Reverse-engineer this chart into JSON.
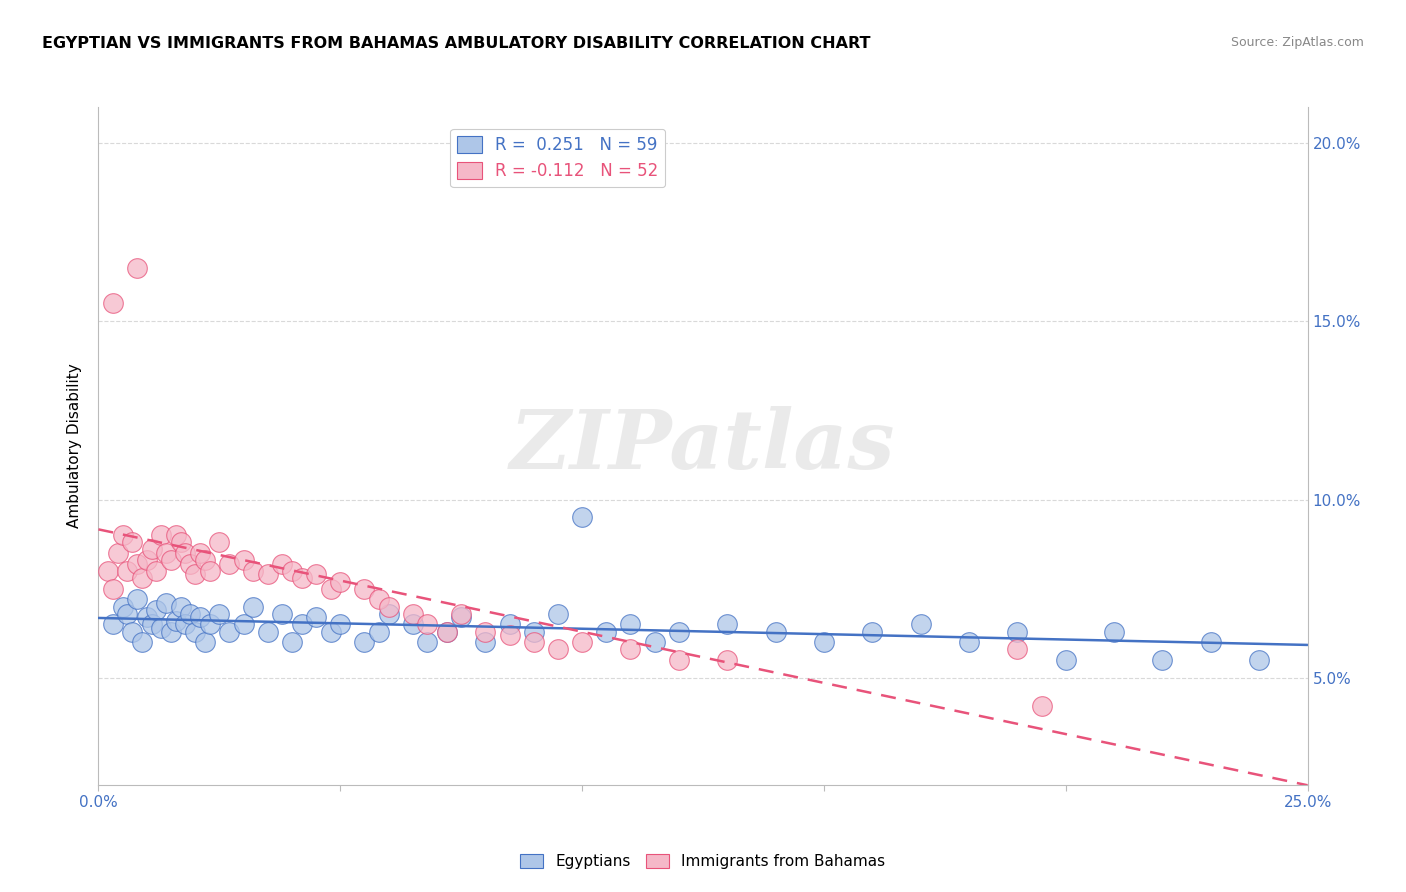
{
  "title": "EGYPTIAN VS IMMIGRANTS FROM BAHAMAS AMBULATORY DISABILITY CORRELATION CHART",
  "source": "Source: ZipAtlas.com",
  "ylabel": "Ambulatory Disability",
  "xlim": [
    0.0,
    0.25
  ],
  "ylim": [
    0.02,
    0.21
  ],
  "yticks": [
    0.05,
    0.1,
    0.15,
    0.2
  ],
  "yticklabels": [
    "5.0%",
    "10.0%",
    "15.0%",
    "20.0%"
  ],
  "xticks": [
    0.0,
    0.05,
    0.1,
    0.15,
    0.2,
    0.25
  ],
  "xticklabels": [
    "0.0%",
    "",
    "",
    "",
    "",
    "25.0%"
  ],
  "r_egyptian": 0.251,
  "n_egyptian": 59,
  "r_bahamas": -0.112,
  "n_bahamas": 52,
  "egyptian_color": "#aec6e8",
  "bahamas_color": "#f5b8c8",
  "line_egyptian_color": "#4472c4",
  "line_bahamas_color": "#e8537a",
  "watermark": "ZIPatlas",
  "background_color": "#ffffff",
  "grid_color": "#d0d0d0",
  "egyptian_x": [
    0.003,
    0.005,
    0.006,
    0.007,
    0.008,
    0.009,
    0.01,
    0.011,
    0.012,
    0.013,
    0.014,
    0.015,
    0.016,
    0.017,
    0.018,
    0.019,
    0.02,
    0.021,
    0.022,
    0.023,
    0.025,
    0.027,
    0.03,
    0.032,
    0.035,
    0.038,
    0.04,
    0.042,
    0.045,
    0.048,
    0.05,
    0.055,
    0.058,
    0.06,
    0.065,
    0.068,
    0.072,
    0.075,
    0.08,
    0.085,
    0.09,
    0.095,
    0.1,
    0.105,
    0.11,
    0.115,
    0.12,
    0.13,
    0.14,
    0.15,
    0.16,
    0.17,
    0.18,
    0.19,
    0.2,
    0.21,
    0.22,
    0.23,
    0.24
  ],
  "egyptian_y": [
    0.065,
    0.07,
    0.068,
    0.063,
    0.072,
    0.06,
    0.067,
    0.065,
    0.069,
    0.064,
    0.071,
    0.063,
    0.066,
    0.07,
    0.065,
    0.068,
    0.063,
    0.067,
    0.06,
    0.065,
    0.068,
    0.063,
    0.065,
    0.07,
    0.063,
    0.068,
    0.06,
    0.065,
    0.067,
    0.063,
    0.065,
    0.06,
    0.063,
    0.068,
    0.065,
    0.06,
    0.063,
    0.067,
    0.06,
    0.065,
    0.063,
    0.068,
    0.095,
    0.063,
    0.065,
    0.06,
    0.063,
    0.065,
    0.063,
    0.06,
    0.063,
    0.065,
    0.06,
    0.063,
    0.055,
    0.063,
    0.055,
    0.06,
    0.055
  ],
  "bahamas_x": [
    0.002,
    0.003,
    0.004,
    0.005,
    0.006,
    0.007,
    0.008,
    0.009,
    0.01,
    0.011,
    0.012,
    0.013,
    0.014,
    0.015,
    0.016,
    0.017,
    0.018,
    0.019,
    0.02,
    0.021,
    0.022,
    0.023,
    0.025,
    0.027,
    0.03,
    0.032,
    0.035,
    0.038,
    0.04,
    0.042,
    0.045,
    0.048,
    0.05,
    0.055,
    0.058,
    0.06,
    0.065,
    0.068,
    0.072,
    0.075,
    0.08,
    0.085,
    0.09,
    0.095,
    0.1,
    0.11,
    0.12,
    0.13,
    0.008,
    0.003,
    0.19,
    0.195
  ],
  "bahamas_y": [
    0.08,
    0.075,
    0.085,
    0.09,
    0.08,
    0.088,
    0.082,
    0.078,
    0.083,
    0.086,
    0.08,
    0.09,
    0.085,
    0.083,
    0.09,
    0.088,
    0.085,
    0.082,
    0.079,
    0.085,
    0.083,
    0.08,
    0.088,
    0.082,
    0.083,
    0.08,
    0.079,
    0.082,
    0.08,
    0.078,
    0.079,
    0.075,
    0.077,
    0.075,
    0.072,
    0.07,
    0.068,
    0.065,
    0.063,
    0.068,
    0.063,
    0.062,
    0.06,
    0.058,
    0.06,
    0.058,
    0.055,
    0.055,
    0.165,
    0.155,
    0.058,
    0.042
  ],
  "legend_items": [
    {
      "label": "R =  0.251   N = 59",
      "color": "#4472c4",
      "facecolor": "#aec6e8"
    },
    {
      "label": "R = -0.112   N = 52",
      "color": "#e8537a",
      "facecolor": "#f5b8c8"
    }
  ]
}
